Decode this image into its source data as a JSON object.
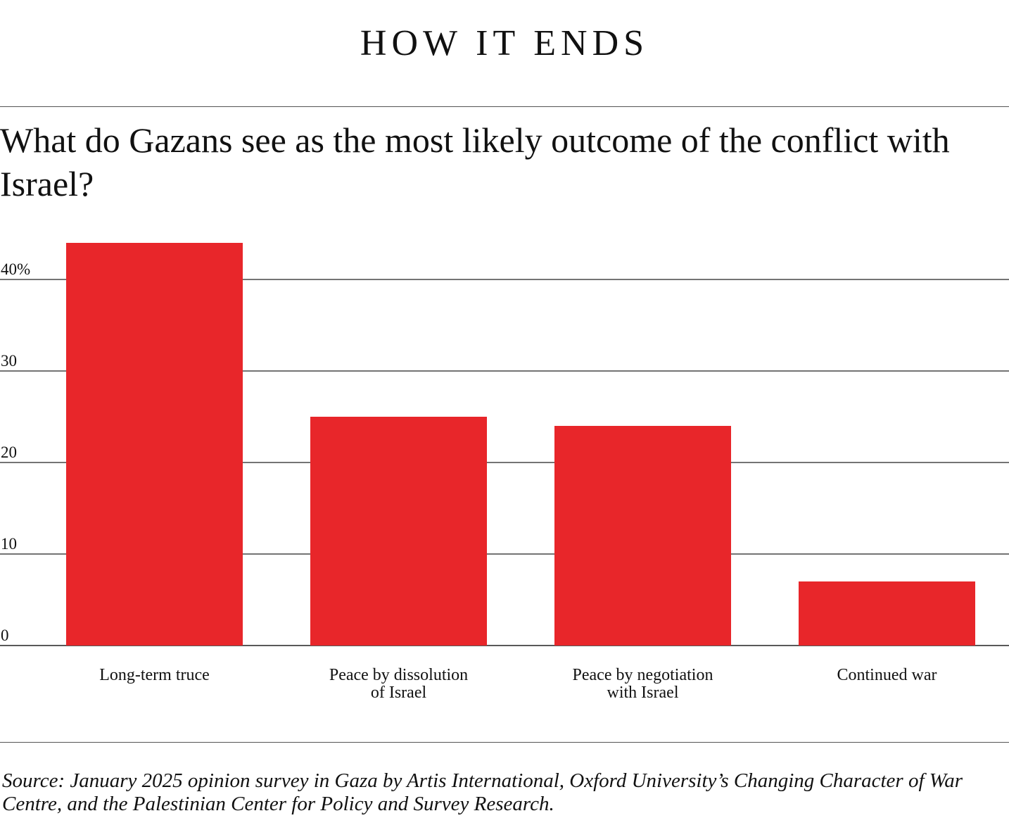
{
  "header": {
    "kicker": "HOW IT ENDS",
    "question": "What do Gazans see as the most likely outcome of the conflict with Israel?"
  },
  "chart_data": {
    "type": "bar",
    "categories": [
      [
        "Long-term truce"
      ],
      [
        "Peace by dissolution",
        "of Israel"
      ],
      [
        "Peace by negotiation",
        "with Israel"
      ],
      [
        "Continued war"
      ]
    ],
    "values": [
      44,
      25,
      24,
      7
    ],
    "ylim": [
      0,
      40
    ],
    "yticks": [
      {
        "value": 0,
        "label": "0"
      },
      {
        "value": 10,
        "label": "10"
      },
      {
        "value": 20,
        "label": "20"
      },
      {
        "value": 30,
        "label": "30"
      },
      {
        "value": 40,
        "label": "40%"
      }
    ],
    "grid": true,
    "bar_color": "#e8262a",
    "xlabel": "",
    "ylabel": ""
  },
  "footer": {
    "source": "Source: January 2025 opinion survey in Gaza by Artis International, Oxford University’s Changing Character of War Centre, and the Palestinian Center for Policy and Survey Research."
  }
}
